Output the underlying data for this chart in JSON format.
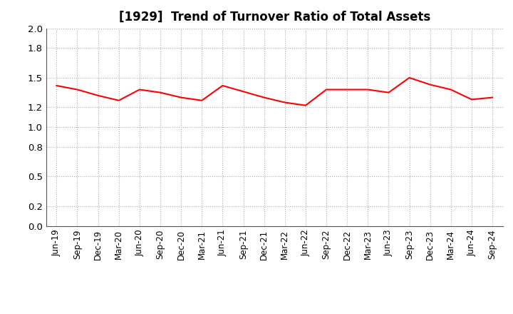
{
  "title": "[1929]  Trend of Turnover Ratio of Total Assets",
  "x_labels": [
    "Jun-19",
    "Sep-19",
    "Dec-19",
    "Mar-20",
    "Jun-20",
    "Sep-20",
    "Dec-20",
    "Mar-21",
    "Jun-21",
    "Sep-21",
    "Dec-21",
    "Mar-22",
    "Jun-22",
    "Sep-22",
    "Dec-22",
    "Mar-23",
    "Jun-23",
    "Sep-23",
    "Dec-23",
    "Mar-24",
    "Jun-24",
    "Sep-24"
  ],
  "values": [
    1.42,
    1.38,
    1.32,
    1.27,
    1.38,
    1.35,
    1.3,
    1.27,
    1.42,
    1.36,
    1.3,
    1.25,
    1.22,
    1.38,
    1.38,
    1.38,
    1.35,
    1.5,
    1.43,
    1.38,
    1.28,
    1.3
  ],
  "line_color": "#FF0000",
  "line_width": 1.5,
  "ylim": [
    0.0,
    2.0
  ],
  "yticks": [
    0.0,
    0.2,
    0.5,
    0.8,
    1.0,
    1.2,
    1.5,
    1.8,
    2.0
  ],
  "grid_color": "#aaaaaa",
  "background_color": "#ffffff",
  "title_fontsize": 12,
  "tick_fontsize": 8.5
}
